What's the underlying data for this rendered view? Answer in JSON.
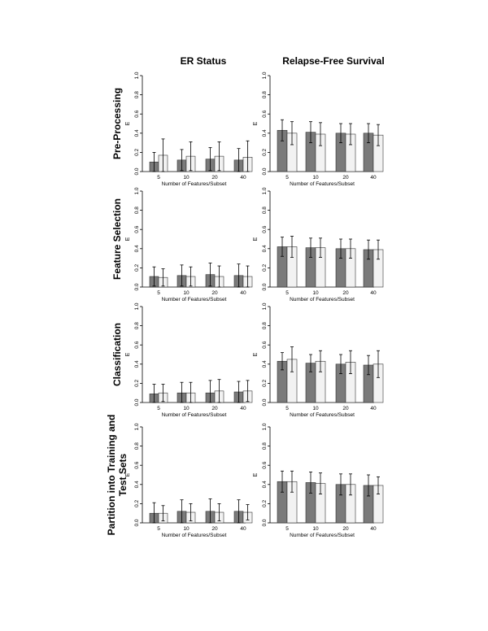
{
  "columns": [
    "ER Status",
    "Relapse-Free Survival"
  ],
  "rows": [
    "Pre-Processing",
    "Feature Selection",
    "Classification",
    "Partition into Training and Test Sets"
  ],
  "colors": {
    "dark_bar": "#7a7a7a",
    "light_bar": "#f2f2f2",
    "axis": "#000000"
  },
  "chart_data": [
    {
      "type": "bar",
      "row": "Pre-Processing",
      "column": "ER Status",
      "categories": [
        "5",
        "10",
        "20",
        "40"
      ],
      "xlabel": "Number of Features/Subset",
      "ylabel": "E",
      "ylim": [
        0,
        1
      ],
      "yticks": [
        "0.0",
        "0.2",
        "0.4",
        "0.6",
        "0.8",
        "1.0"
      ],
      "series": [
        {
          "values": [
            0.1,
            0.12,
            0.13,
            0.12
          ],
          "errors": [
            0.1,
            0.11,
            0.12,
            0.12
          ]
        },
        {
          "values": [
            0.17,
            0.16,
            0.16,
            0.15
          ],
          "errors": [
            0.17,
            0.15,
            0.15,
            0.17
          ]
        }
      ]
    },
    {
      "type": "bar",
      "row": "Pre-Processing",
      "column": "Relapse-Free Survival",
      "categories": [
        "5",
        "10",
        "20",
        "40"
      ],
      "xlabel": "Number of Features/Subset",
      "ylabel": "E",
      "ylim": [
        0,
        1
      ],
      "yticks": [
        "0.0",
        "0.2",
        "0.4",
        "0.6",
        "0.8",
        "1.0"
      ],
      "series": [
        {
          "values": [
            0.43,
            0.41,
            0.4,
            0.4
          ],
          "errors": [
            0.11,
            0.11,
            0.1,
            0.1
          ]
        },
        {
          "values": [
            0.4,
            0.39,
            0.39,
            0.38
          ],
          "errors": [
            0.12,
            0.12,
            0.11,
            0.11
          ]
        }
      ]
    },
    {
      "type": "bar",
      "row": "Feature Selection",
      "column": "ER Status",
      "categories": [
        "5",
        "10",
        "20",
        "40"
      ],
      "xlabel": "Number of Features/Subset",
      "ylabel": "E",
      "ylim": [
        0,
        1
      ],
      "yticks": [
        "0.0",
        "0.2",
        "0.4",
        "0.6",
        "0.8",
        "1.0"
      ],
      "series": [
        {
          "values": [
            0.11,
            0.12,
            0.13,
            0.12
          ],
          "errors": [
            0.1,
            0.11,
            0.12,
            0.12
          ]
        },
        {
          "values": [
            0.1,
            0.11,
            0.11,
            0.11
          ],
          "errors": [
            0.09,
            0.1,
            0.11,
            0.11
          ]
        }
      ]
    },
    {
      "type": "bar",
      "row": "Feature Selection",
      "column": "Relapse-Free Survival",
      "categories": [
        "5",
        "10",
        "20",
        "40"
      ],
      "xlabel": "Number of Features/Subset",
      "ylabel": "E",
      "ylim": [
        0,
        1
      ],
      "yticks": [
        "0.0",
        "0.2",
        "0.4",
        "0.6",
        "0.8",
        "1.0"
      ],
      "series": [
        {
          "values": [
            0.42,
            0.41,
            0.4,
            0.39
          ],
          "errors": [
            0.1,
            0.1,
            0.1,
            0.1
          ]
        },
        {
          "values": [
            0.42,
            0.41,
            0.4,
            0.39
          ],
          "errors": [
            0.11,
            0.1,
            0.1,
            0.1
          ]
        }
      ]
    },
    {
      "type": "bar",
      "row": "Classification",
      "column": "ER Status",
      "categories": [
        "5",
        "10",
        "20",
        "40"
      ],
      "xlabel": "Number of Features/Subset",
      "ylabel": "E",
      "ylim": [
        0,
        1
      ],
      "yticks": [
        "0.0",
        "0.2",
        "0.4",
        "0.6",
        "0.8",
        "1.0"
      ],
      "series": [
        {
          "values": [
            0.09,
            0.1,
            0.1,
            0.11
          ],
          "errors": [
            0.1,
            0.11,
            0.13,
            0.11
          ]
        },
        {
          "values": [
            0.1,
            0.1,
            0.12,
            0.12
          ],
          "errors": [
            0.09,
            0.11,
            0.12,
            0.11
          ]
        }
      ]
    },
    {
      "type": "bar",
      "row": "Classification",
      "column": "Relapse-Free Survival",
      "categories": [
        "5",
        "10",
        "20",
        "40"
      ],
      "xlabel": "Number of Features/Subset",
      "ylabel": "E",
      "ylim": [
        0,
        1
      ],
      "yticks": [
        "0.0",
        "0.2",
        "0.4",
        "0.6",
        "0.8",
        "1.0"
      ],
      "series": [
        {
          "values": [
            0.43,
            0.41,
            0.4,
            0.39
          ],
          "errors": [
            0.09,
            0.09,
            0.1,
            0.1
          ]
        },
        {
          "values": [
            0.45,
            0.43,
            0.42,
            0.4
          ],
          "errors": [
            0.13,
            0.11,
            0.12,
            0.14
          ]
        }
      ]
    },
    {
      "type": "bar",
      "row": "Partition into Training and Test Sets",
      "column": "ER Status",
      "categories": [
        "5",
        "10",
        "20",
        "40"
      ],
      "xlabel": "Number of Features/Subset",
      "ylabel": "E",
      "ylim": [
        0,
        1
      ],
      "yticks": [
        "0.0",
        "0.2",
        "0.4",
        "0.6",
        "0.8",
        "1.0"
      ],
      "series": [
        {
          "values": [
            0.1,
            0.12,
            0.12,
            0.12
          ],
          "errors": [
            0.11,
            0.12,
            0.13,
            0.12
          ]
        },
        {
          "values": [
            0.1,
            0.11,
            0.11,
            0.11
          ],
          "errors": [
            0.08,
            0.09,
            0.09,
            0.08
          ]
        }
      ]
    },
    {
      "type": "bar",
      "row": "Partition into Training and Test Sets",
      "column": "Relapse-Free Survival",
      "categories": [
        "5",
        "10",
        "20",
        "40"
      ],
      "xlabel": "Number of Features/Subset",
      "ylabel": "E",
      "ylim": [
        0,
        1
      ],
      "yticks": [
        "0.0",
        "0.2",
        "0.4",
        "0.6",
        "0.8",
        "1.0"
      ],
      "series": [
        {
          "values": [
            0.43,
            0.42,
            0.4,
            0.39
          ],
          "errors": [
            0.11,
            0.11,
            0.11,
            0.11
          ]
        },
        {
          "values": [
            0.43,
            0.41,
            0.4,
            0.39
          ],
          "errors": [
            0.11,
            0.11,
            0.11,
            0.09
          ]
        }
      ]
    }
  ]
}
